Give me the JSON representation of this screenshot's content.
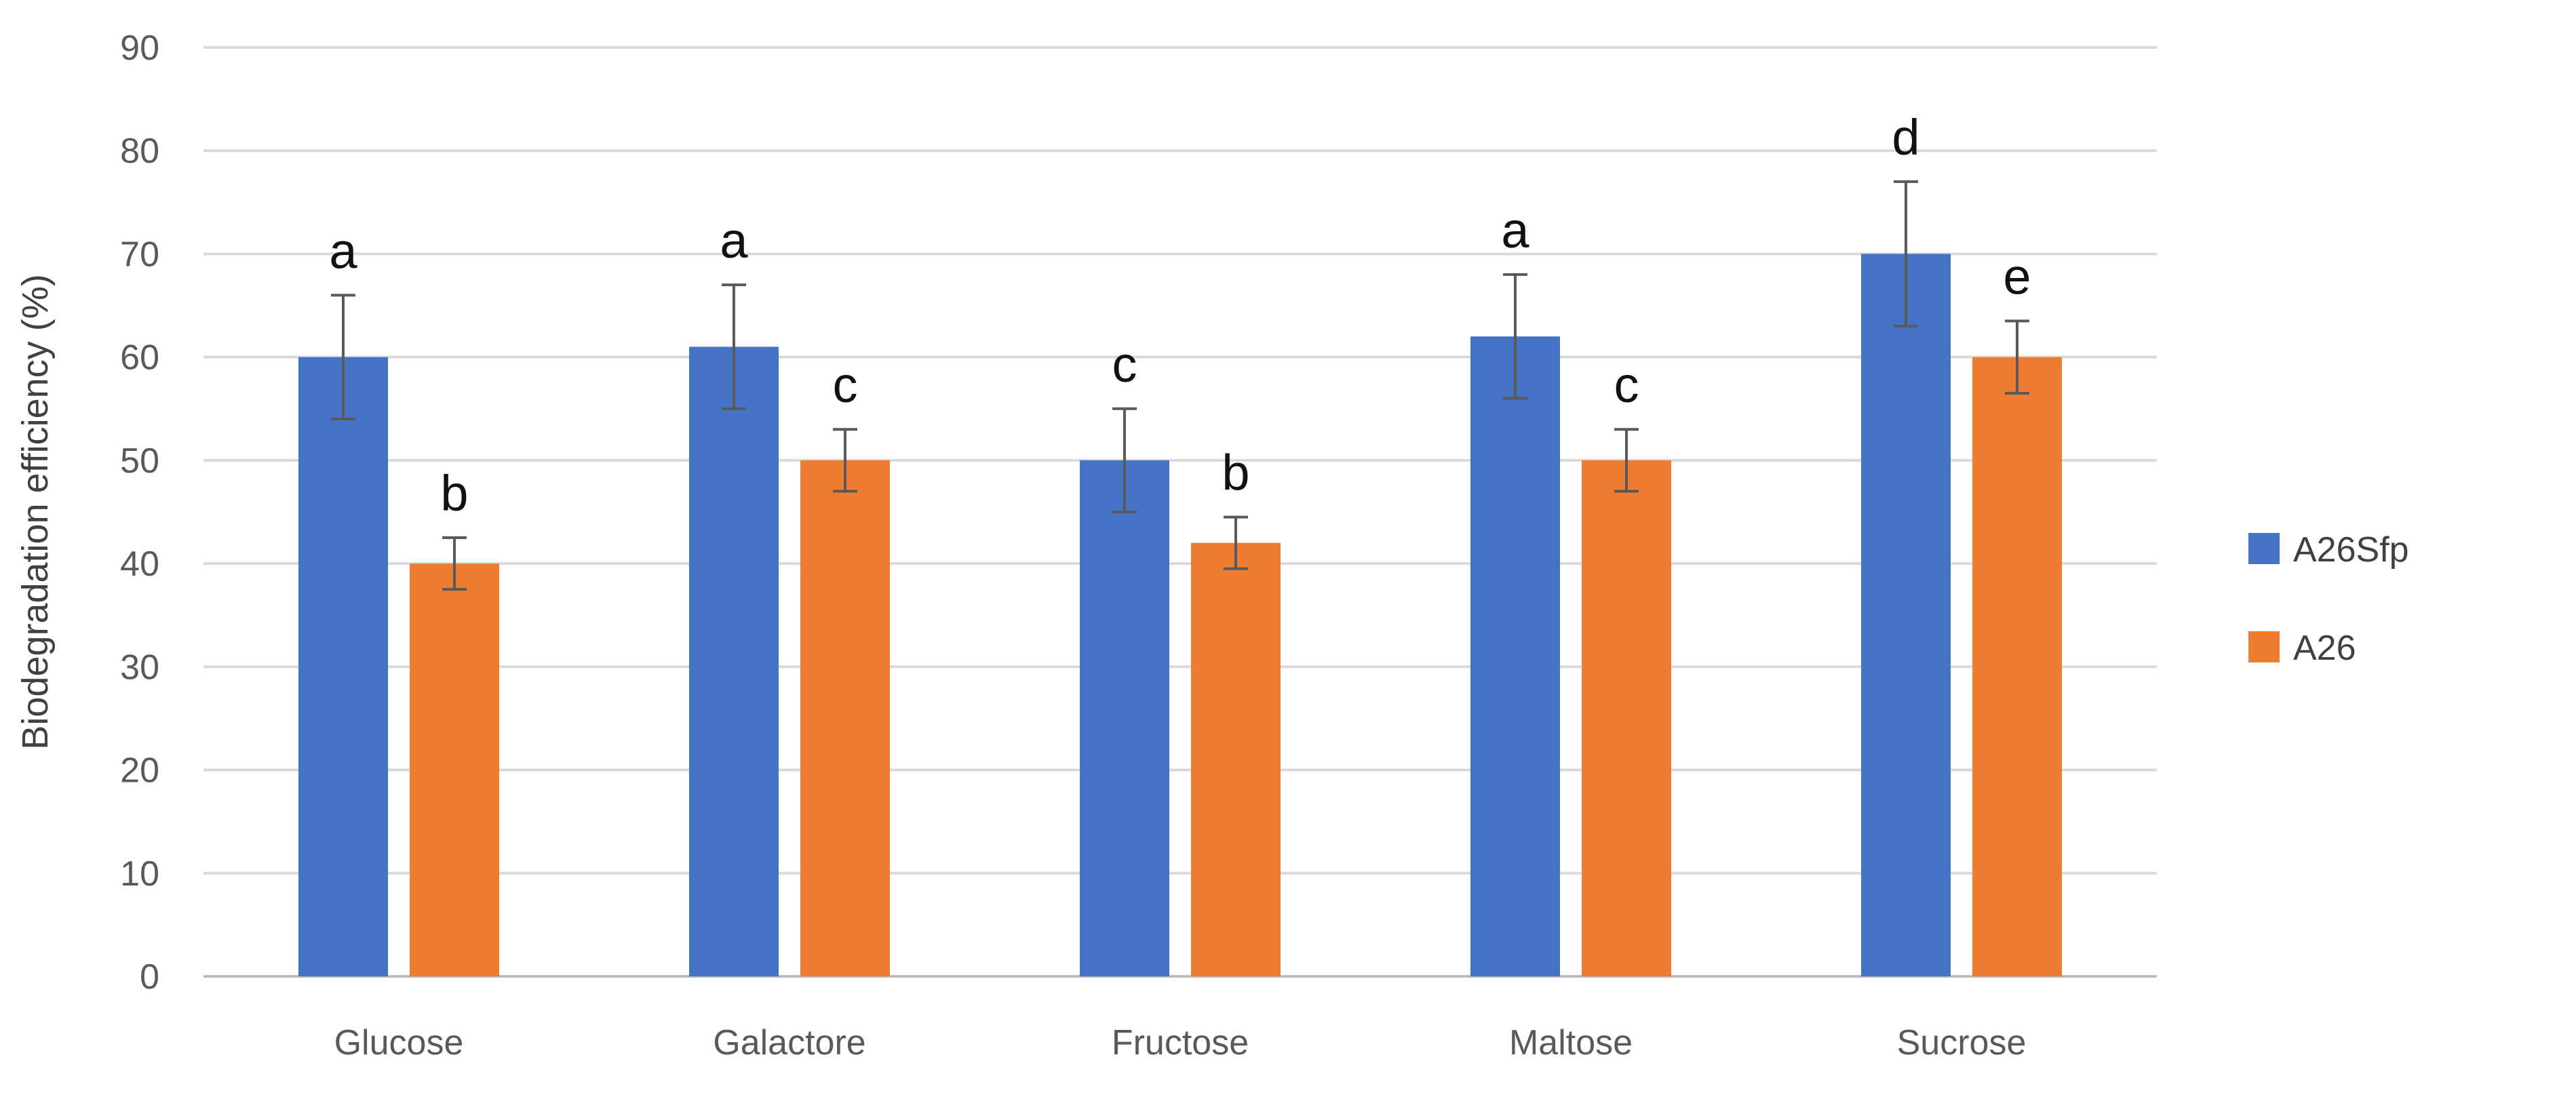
{
  "chart_data": {
    "type": "bar",
    "title": "",
    "xlabel": "",
    "ylabel": "Biodegradation efficiency (%)",
    "ylim": [
      0,
      90
    ],
    "yticks": [
      0,
      10,
      20,
      30,
      40,
      50,
      60,
      70,
      80,
      90
    ],
    "grid": true,
    "legend_position": "right",
    "categories": [
      "Glucose",
      "Galactore",
      "Fructose",
      "Maltose",
      "Sucrose"
    ],
    "series": [
      {
        "name": "A26Sfp",
        "color": "#4472C4",
        "values": [
          60,
          61,
          50,
          62,
          70
        ],
        "errors": [
          6,
          6,
          5,
          6,
          7
        ],
        "labels": [
          "a",
          "a",
          "c",
          "a",
          "d"
        ]
      },
      {
        "name": "A26",
        "color": "#ED7D31",
        "values": [
          40,
          50,
          42,
          50,
          60
        ],
        "errors": [
          2.5,
          3,
          2.5,
          3,
          3.5
        ],
        "labels": [
          "b",
          "c",
          "b",
          "c",
          "e"
        ]
      }
    ]
  }
}
